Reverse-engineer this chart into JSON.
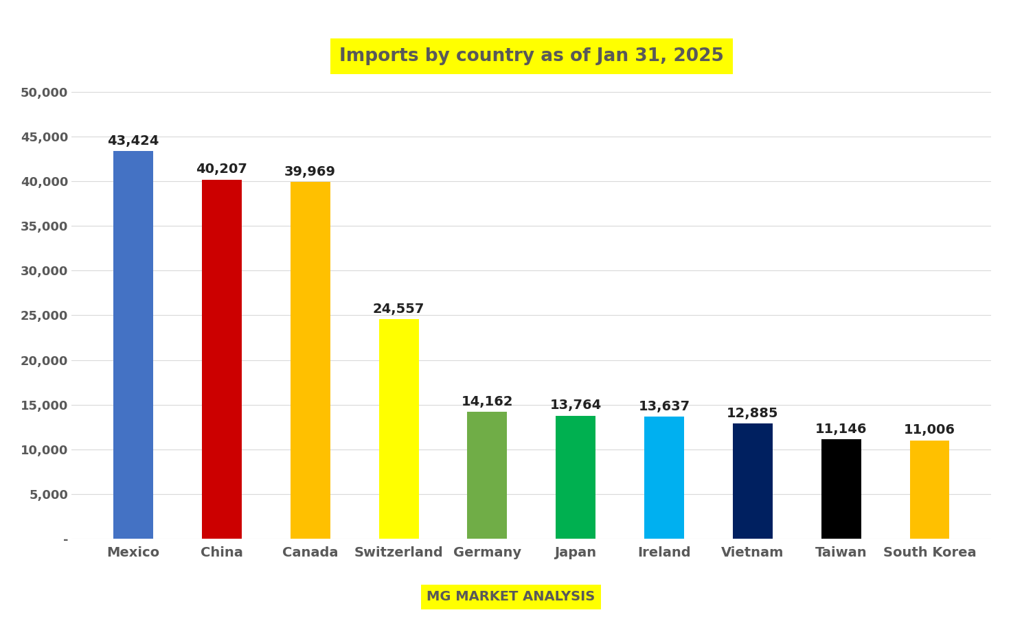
{
  "title": "Imports by country as of Jan 31, 2025",
  "title_bg_color": "#FFFF00",
  "title_text_color": "#595959",
  "subtitle": "MG MARKET ANALYSIS",
  "subtitle_bg_color": "#FFFF00",
  "subtitle_text_color": "#595959",
  "categories": [
    "Mexico",
    "China",
    "Canada",
    "Switzerland",
    "Germany",
    "Japan",
    "Ireland",
    "Vietnam",
    "Taiwan",
    "South Korea"
  ],
  "values": [
    43424,
    40207,
    39969,
    24557,
    14162,
    13764,
    13637,
    12885,
    11146,
    11006
  ],
  "bar_colors": [
    "#4472C4",
    "#CC0000",
    "#FFC000",
    "#FFFF00",
    "#70AD47",
    "#00B050",
    "#00B0F0",
    "#002060",
    "#000000",
    "#FFC000"
  ],
  "value_labels": [
    "43,424",
    "40,207",
    "39,969",
    "24,557",
    "14,162",
    "13,764",
    "13,637",
    "12,885",
    "11,146",
    "11,006"
  ],
  "ylim": [
    0,
    52000
  ],
  "yticks": [
    0,
    5000,
    10000,
    15000,
    20000,
    25000,
    30000,
    35000,
    40000,
    45000,
    50000
  ],
  "ytick_labels": [
    "-",
    "5,000",
    "10,000",
    "15,000",
    "20,000",
    "25,000",
    "30,000",
    "35,000",
    "40,000",
    "45,000",
    "50,000"
  ],
  "bg_color": "#FFFFFF",
  "grid_color": "#D9D9D9",
  "axis_text_color": "#595959",
  "label_fontsize": 14,
  "value_fontsize": 14,
  "title_fontsize": 19,
  "subtitle_fontsize": 14,
  "tick_fontsize": 13,
  "bar_width": 0.45
}
